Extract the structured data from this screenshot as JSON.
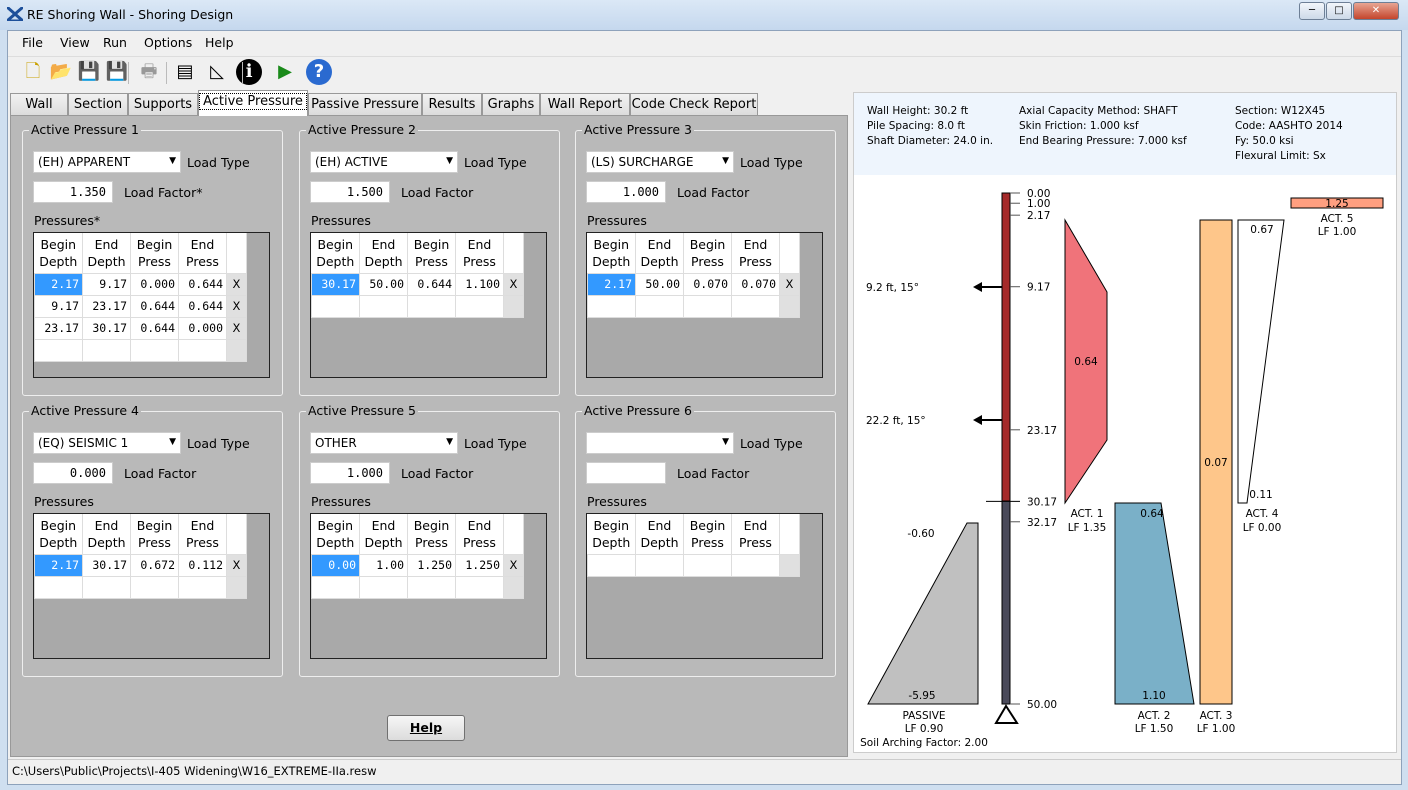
{
  "window": {
    "title": "RE Shoring Wall - Shoring Design",
    "minimize": "─",
    "maximize": "□",
    "close": "✕"
  },
  "menu": [
    "File",
    "View",
    "Run",
    "Options",
    "Help"
  ],
  "toolbar": [
    {
      "icon": "new-file-icon",
      "glyph": "🗋",
      "color": "#c9a100"
    },
    {
      "icon": "open-folder-icon",
      "glyph": "📂",
      "color": "#e0a93a"
    },
    {
      "icon": "save-icon",
      "glyph": "💾",
      "color": "#6a5aa0"
    },
    {
      "icon": "save-as-icon",
      "glyph": "💾",
      "color": "#3a5ab0"
    },
    {
      "icon": "print-icon",
      "glyph": "🖶",
      "color": "#999999"
    },
    {
      "icon": "layers-icon",
      "glyph": "▤",
      "color": "#000000"
    },
    {
      "icon": "pressure-diagram-icon",
      "glyph": "◺",
      "color": "#000000"
    },
    {
      "icon": "info-icon",
      "glyph": "ℹ",
      "color": "#000000"
    },
    {
      "icon": "run-icon",
      "glyph": "▶",
      "color": "#1a8a1a"
    },
    {
      "icon": "help-icon",
      "glyph": "?",
      "color": "#2a6ad0"
    }
  ],
  "tabs": [
    "Wall",
    "Section",
    "Supports",
    "Active Pressure",
    "Passive Pressure",
    "Results",
    "Graphs",
    "Wall Report",
    "Code Check Report"
  ],
  "active_tab": "Active Pressure",
  "grid_headers": [
    [
      "Begin",
      "Depth"
    ],
    [
      "End",
      "Depth"
    ],
    [
      "Begin",
      "Press"
    ],
    [
      "End",
      "Press"
    ]
  ],
  "load_type_label": "Load Type",
  "delete_label": "X",
  "groups": [
    {
      "title": "Active Pressure 1",
      "load_type": "(EH) APPARENT",
      "load_factor": "1.350",
      "load_factor_label": "Load Factor*",
      "pressures_label": "Pressures*",
      "rows": [
        [
          "2.17",
          "9.17",
          "0.000",
          "0.644"
        ],
        [
          "9.17",
          "23.17",
          "0.644",
          "0.644"
        ],
        [
          "23.17",
          "30.17",
          "0.644",
          "0.000"
        ]
      ]
    },
    {
      "title": "Active Pressure 2",
      "load_type": "(EH) ACTIVE",
      "load_factor": "1.500",
      "load_factor_label": "Load Factor",
      "pressures_label": "Pressures",
      "rows": [
        [
          "30.17",
          "50.00",
          "0.644",
          "1.100"
        ]
      ]
    },
    {
      "title": "Active Pressure 3",
      "load_type": "(LS) SURCHARGE",
      "load_factor": "1.000",
      "load_factor_label": "Load Factor",
      "pressures_label": "Pressures",
      "rows": [
        [
          "2.17",
          "50.00",
          "0.070",
          "0.070"
        ]
      ]
    },
    {
      "title": "Active Pressure 4",
      "load_type": "(EQ) SEISMIC 1",
      "load_factor": "0.000",
      "load_factor_label": "Load Factor",
      "pressures_label": "Pressures",
      "rows": [
        [
          "2.17",
          "30.17",
          "0.672",
          "0.112"
        ]
      ]
    },
    {
      "title": "Active Pressure 5",
      "load_type": "OTHER",
      "load_factor": "1.000",
      "load_factor_label": "Load Factor",
      "pressures_label": "Pressures",
      "rows": [
        [
          "0.00",
          "1.00",
          "1.250",
          "1.250"
        ]
      ]
    },
    {
      "title": "Active Pressure 6",
      "load_type": "",
      "load_factor": "",
      "load_factor_label": "Load Factor",
      "pressures_label": "Pressures",
      "rows": []
    }
  ],
  "help_button": "Help",
  "info": {
    "col1": [
      "Wall Height: 30.2 ft",
      "Pile Spacing: 8.0 ft",
      "Shaft Diameter: 24.0 in."
    ],
    "col2": [
      "Axial Capacity Method: SHAFT",
      "Skin Friction: 1.000 ksf",
      "End Bearing Pressure: 7.000 ksf"
    ],
    "col3": [
      "Section: W12X45",
      "Code: AASHTO 2014",
      "Fy: 50.0 ksi",
      "Flexural Limit: Sx"
    ]
  },
  "diagram": {
    "depth_ticks": [
      "0.00",
      "1.00",
      "2.17",
      "9.17",
      "23.17",
      "30.17",
      "32.17",
      "50.00"
    ],
    "supports": [
      "9.2 ft, 15°",
      "22.2 ft, 15°"
    ],
    "act1": {
      "value": "0.64",
      "name": "ACT. 1",
      "lf": "LF 1.35",
      "color": "#f0737a"
    },
    "act2": {
      "top": "0.64",
      "bottom": "1.10",
      "name": "ACT. 2",
      "lf": "LF 1.50",
      "color": "#7ab0c8"
    },
    "act3": {
      "value": "0.07",
      "name": "ACT. 3",
      "lf": "LF 1.00",
      "color": "#fec68a"
    },
    "act4": {
      "top": "0.67",
      "bottom": "0.11",
      "name": "ACT. 4",
      "lf": "LF 0.00",
      "color": "#ffffff"
    },
    "act5": {
      "value": "1.25",
      "name": "ACT. 5",
      "lf": "LF 1.00",
      "color": "#ff9f80"
    },
    "passive": {
      "top": "-0.60",
      "bottom": "-5.95",
      "name": "PASSIVE",
      "lf": "LF 0.90",
      "arching": "Soil Arching Factor: 2.00",
      "color": "#c0c0c0"
    },
    "pile_colors": {
      "retained": "#a52a2a",
      "embedded": "#4a4a5a"
    }
  },
  "status": "C:\\Users\\Public\\Projects\\I-405 Widening\\W16_EXTREME-IIa.resw"
}
